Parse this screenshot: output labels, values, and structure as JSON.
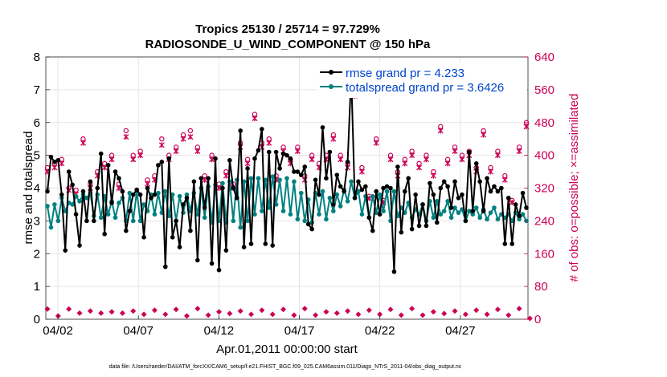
{
  "chart_data": {
    "type": "line",
    "title_line1": "Tropics 25130 / 25714 = 97.729%",
    "title_line2": "RADIOSONDE_U_WIND_COMPONENT @ 150 hPa",
    "xlabel": "Apr.01,2011 00:00:00 start",
    "ylabel_left": "rmse and totalspread",
    "ylabel_right": "# of obs: o=possible; ×=assimilated",
    "ylim_left": [
      0,
      8
    ],
    "ylim_right": [
      0,
      640
    ],
    "xlim": [
      0.25,
      30.2
    ],
    "left_ticks": [
      "0",
      "1",
      "2",
      "3",
      "4",
      "5",
      "6",
      "7",
      "8"
    ],
    "right_ticks": [
      "0",
      "80",
      "160",
      "240",
      "320",
      "400",
      "480",
      "560",
      "640"
    ],
    "x_ticks": [
      {
        "x": 1,
        "label": "04/02"
      },
      {
        "x": 6,
        "label": "04/07"
      },
      {
        "x": 11,
        "label": "04/12"
      },
      {
        "x": 16,
        "label": "04/17"
      },
      {
        "x": 21,
        "label": "04/22"
      },
      {
        "x": 26,
        "label": "04/27"
      }
    ],
    "footer": "data file: /Users/raeder/DAI/ATM_forcXX/CAM6_setup/f.e21.FHIST_BGC.f09_025.CAM6assim.011/Diags_NTrS_2011-04/obs_diag_output.nc",
    "colors": {
      "rmse": "#000000",
      "spread": "#008080",
      "obs": "#cc0055",
      "right_axis": "#cc0055",
      "legend_text": "#0044cc"
    },
    "series": [
      {
        "name": "rmse grand pr = 4.233",
        "values": [
          3.9,
          4.95,
          4.8,
          4.85,
          3.8,
          2.1,
          4.5,
          4.1,
          3.2,
          2.25,
          3.9,
          3.0,
          4.2,
          3.0,
          4.0,
          5.05,
          2.6,
          4.7,
          3.55,
          4.5,
          4.3,
          3.9,
          2.7,
          3.3,
          3.8,
          3.95,
          3.8,
          2.5,
          4.0,
          3.7,
          3.8,
          4.7,
          4.8,
          1.6,
          4.9,
          2.5,
          3.0,
          2.2,
          3.5,
          3.7,
          2.7,
          4.2,
          1.8,
          4.3,
          3.4,
          4.3,
          1.7,
          4.9,
          1.5,
          4.0,
          2.1,
          4.85,
          4.0,
          3.7,
          5.75,
          2.2,
          4.6,
          2.3,
          4.9,
          5.15,
          5.8,
          2.3,
          5.1,
          2.25,
          5.1,
          4.6,
          5.05,
          5.0,
          4.9,
          4.5,
          4.5,
          4.4,
          4.65,
          2.9,
          2.75,
          4.25,
          3.8,
          5.85,
          4.3,
          5.1,
          3.5,
          4.4,
          4.05,
          3.9,
          4.8,
          7.45,
          3.7,
          4.2,
          3.95,
          4.05,
          3.1,
          2.7,
          3.9,
          3.2,
          4.0,
          4.05,
          4.0,
          1.45,
          4.65,
          2.65,
          3.9,
          4.3,
          2.75,
          3.8,
          2.85,
          3.5,
          2.85,
          4.15,
          3.8,
          2.95,
          4.0,
          4.2,
          4.05,
          3.4,
          4.2,
          3.7,
          3.8,
          3.0,
          5.1,
          3.3,
          4.75,
          4.2,
          3.3,
          4.3,
          3.9,
          4.05,
          3.9,
          4.0,
          2.3,
          3.7,
          2.3,
          3.5,
          3.15,
          3.85,
          3.4
        ],
        "color": "#000000"
      },
      {
        "name": "totalspread grand pr = 3.6426",
        "values": [
          3.45,
          2.8,
          3.5,
          3.0,
          3.7,
          3.3,
          3.55,
          3.5,
          3.75,
          3.6,
          3.8,
          3.7,
          3.85,
          3.15,
          3.8,
          3.1,
          3.75,
          3.2,
          3.6,
          3.1,
          3.55,
          3.7,
          3.0,
          3.85,
          3.0,
          3.9,
          3.0,
          3.5,
          3.3,
          3.8,
          3.2,
          3.85,
          3.25,
          3.9,
          3.15,
          3.8,
          3.0,
          3.75,
          3.25,
          3.8,
          3.3,
          3.85,
          3.2,
          4.0,
          3.1,
          4.05,
          2.95,
          4.1,
          3.0,
          4.15,
          2.95,
          4.2,
          3.0,
          4.25,
          2.8,
          4.2,
          3.0,
          4.3,
          3.2,
          4.3,
          3.3,
          4.25,
          3.4,
          4.35,
          3.5,
          4.25,
          3.3,
          4.3,
          3.2,
          4.2,
          3.05,
          3.85,
          3.0,
          3.65,
          2.95,
          3.85,
          3.2,
          3.9,
          3.05,
          3.7,
          3.3,
          3.8,
          3.45,
          3.95,
          3.6,
          4.2,
          3.7,
          3.9,
          3.2,
          3.75,
          3.1,
          3.75,
          3.25,
          3.8,
          3.3,
          3.9,
          3.0,
          3.9,
          3.15,
          3.4,
          3.25,
          3.55,
          3.1,
          3.35,
          3.2,
          3.5,
          3.0,
          3.6,
          3.1,
          3.6,
          3.2,
          3.3,
          3.6,
          3.1,
          3.4,
          3.25,
          3.35,
          3.0,
          3.3,
          3.2,
          3.4,
          3.1,
          3.35,
          3.05,
          3.25,
          3.4,
          3.05,
          3.2,
          3.1,
          3.2,
          3.0,
          3.25,
          3.05,
          3.2,
          3.0
        ],
        "color": "#008080"
      },
      {
        "name": "# obs possible (o)",
        "values": [
          370,
          410,
          380,
          420,
          390,
          305,
          320,
          290,
          315,
          305,
          440,
          390,
          330,
          430,
          360,
          460,
          380,
          370,
          400,
          430,
          330,
          340,
          460,
          380,
          400,
          430,
          410,
          390,
          340,
          470,
          350,
          390,
          440,
          300,
          400,
          480,
          420,
          400,
          450,
          440,
          460,
          390,
          420,
          520,
          350,
          510,
          400,
          480,
          330,
          400,
          360,
          430,
          330,
          380,
          430,
          450,
          390,
          480,
          500,
          400,
          430,
          400,
          440,
          410,
          350,
          500,
          420,
          500,
          390,
          380,
          420,
          400,
          350,
          410,
          400,
          390,
          380,
          440,
          400,
          460,
          450,
          370,
          400,
          360,
          380,
          480,
          560,
          430,
          370,
          350,
          300,
          350,
          440,
          420,
          290,
          310,
          400,
          350,
          360,
          300,
          390,
          370,
          410,
          300,
          380,
          410,
          400,
          440,
          360,
          380,
          470,
          320,
          390,
          420,
          420,
          310,
          400,
          360,
          410,
          360,
          370,
          340,
          460,
          330,
          370,
          380,
          410,
          410,
          350,
          490,
          290,
          360,
          420,
          330,
          480,
          300
        ],
        "color": "#cc0055"
      },
      {
        "name": "# obs assimilated (×)",
        "values": [
          360,
          400,
          370,
          400,
          380,
          300,
          315,
          285,
          305,
          300,
          430,
          380,
          320,
          415,
          350,
          445,
          370,
          360,
          390,
          420,
          320,
          330,
          445,
          370,
          390,
          420,
          400,
          380,
          330,
          455,
          340,
          380,
          425,
          295,
          390,
          465,
          410,
          390,
          440,
          430,
          445,
          380,
          410,
          500,
          340,
          495,
          390,
          470,
          320,
          390,
          350,
          420,
          320,
          370,
          420,
          440,
          380,
          470,
          490,
          390,
          420,
          390,
          430,
          400,
          340,
          490,
          410,
          490,
          380,
          370,
          410,
          390,
          340,
          400,
          390,
          380,
          370,
          430,
          390,
          450,
          440,
          360,
          390,
          350,
          370,
          470,
          545,
          420,
          360,
          340,
          295,
          340,
          430,
          410,
          285,
          300,
          390,
          340,
          350,
          295,
          380,
          360,
          400,
          295,
          370,
          400,
          390,
          430,
          350,
          370,
          460,
          315,
          380,
          410,
          410,
          300,
          390,
          350,
          400,
          350,
          360,
          330,
          450,
          320,
          360,
          370,
          400,
          400,
          340,
          480,
          285,
          350,
          410,
          320,
          470,
          295
        ],
        "color": "#cc0055"
      }
    ],
    "bottom_obs_possible": [
      25,
      12,
      22,
      8,
      18,
      12,
      25,
      10,
      20,
      15,
      28,
      12,
      20,
      10,
      22,
      15,
      25,
      12,
      18,
      8,
      22,
      15,
      28,
      12,
      20,
      10,
      25,
      12,
      18,
      10,
      22,
      15,
      30,
      12,
      20,
      10,
      24,
      12,
      18,
      8,
      22,
      15,
      26,
      12,
      20,
      10,
      24,
      12,
      18,
      10,
      22,
      14,
      26,
      12,
      20,
      10,
      24,
      12,
      18,
      10,
      22,
      15,
      26,
      12,
      20,
      10,
      24,
      12,
      18,
      10,
      22,
      14,
      26,
      12,
      20,
      10,
      24,
      12,
      18,
      10,
      22,
      15,
      26,
      12,
      20,
      10,
      24,
      12,
      18,
      10,
      22,
      14,
      26,
      12,
      20,
      10,
      24,
      12,
      18,
      10,
      22,
      15,
      26,
      12,
      20,
      10,
      24,
      12,
      18,
      10,
      22,
      14,
      26,
      12,
      20,
      10,
      24,
      12,
      18,
      10,
      22,
      15,
      26,
      12,
      20,
      10,
      24,
      12,
      18,
      10,
      22,
      14,
      26,
      12,
      5,
      2
    ]
  }
}
